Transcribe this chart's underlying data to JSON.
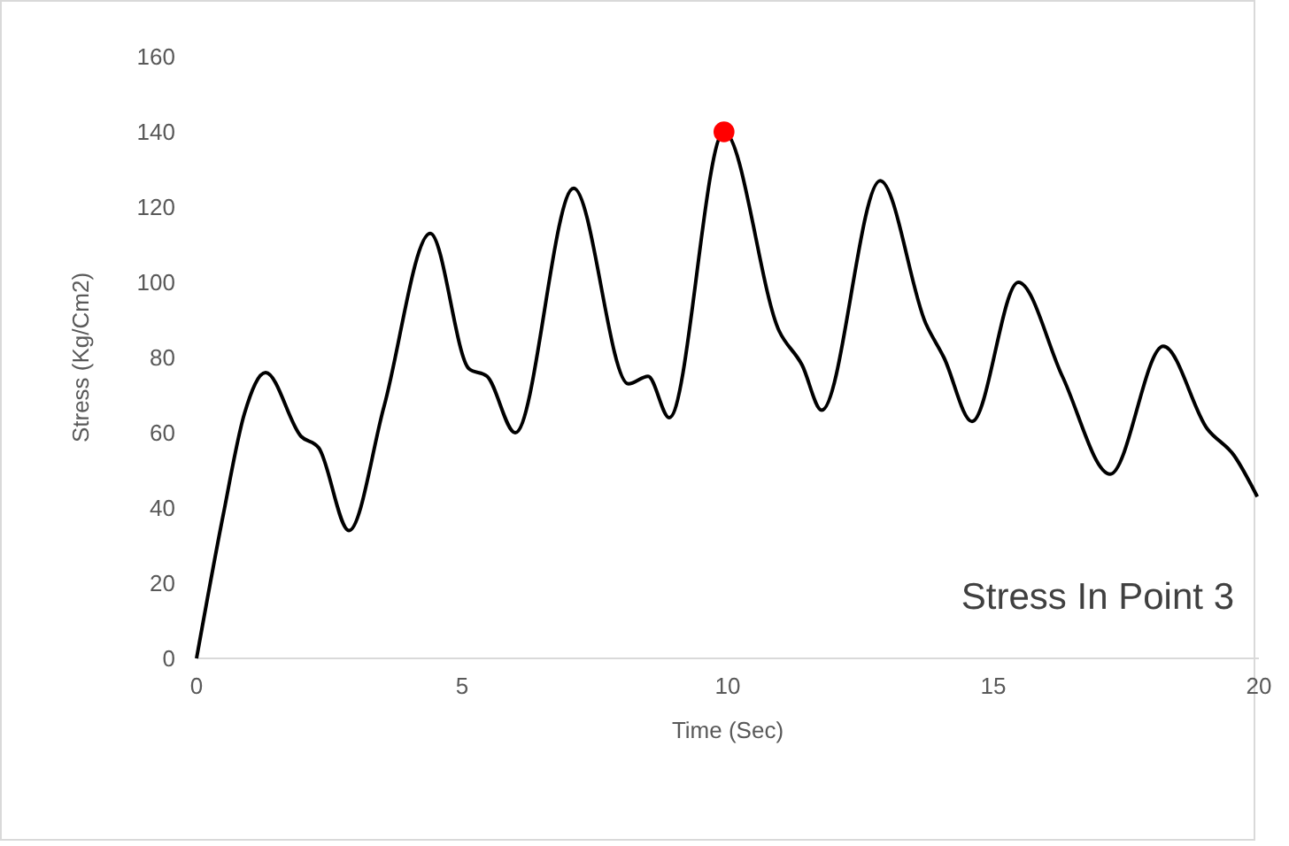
{
  "chart_data": {
    "type": "line",
    "xlabel": "Time (Sec)",
    "ylabel": "Stress (Kg/Cm2)",
    "annotations": [
      "Stress In Point 3"
    ],
    "xlim": [
      0,
      20
    ],
    "xticks": [
      0,
      5,
      10,
      15,
      20
    ],
    "ylim": [
      0,
      160
    ],
    "yticks": [
      0,
      20,
      40,
      60,
      80,
      100,
      120,
      140,
      160
    ],
    "series": [
      {
        "color": "#000000",
        "marker": "none",
        "x": [
          0,
          0.5,
          0.9,
          1.3,
          1.97,
          2.3,
          2.87,
          3.53,
          4.4,
          5.13,
          5.47,
          6.0,
          7.1,
          8.13,
          8.5,
          8.9,
          9.93,
          10.97,
          11.4,
          11.77,
          12.87,
          13.73,
          14.07,
          14.6,
          15.47,
          16.3,
          17.2,
          18.2,
          19.03,
          19.53,
          19.97
        ],
        "values": [
          0,
          38,
          65,
          76,
          59,
          56,
          34,
          67,
          113,
          77,
          75,
          60,
          125,
          73,
          75,
          64,
          140,
          87,
          78,
          66,
          127,
          89,
          80,
          63,
          100,
          75,
          49,
          83,
          61,
          54,
          43
        ]
      },
      {
        "type": "scatter",
        "color": "#ff0000",
        "marker": "circle",
        "x": [
          9.93
        ],
        "values": [
          140
        ]
      }
    ]
  }
}
